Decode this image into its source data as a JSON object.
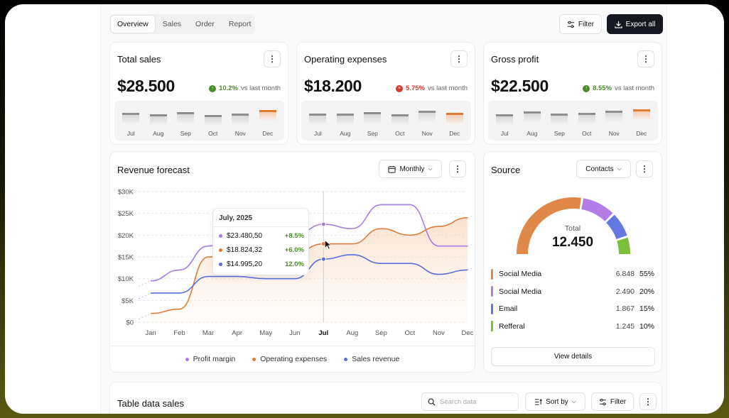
{
  "tabs": [
    "Overview",
    "Sales",
    "Order",
    "Report"
  ],
  "toolbar": {
    "filter_label": "Filter",
    "export_label": "Export all"
  },
  "kpis": [
    {
      "title": "Total sales",
      "value": "$28.500",
      "direction": "up",
      "pct": "10.2%",
      "suffix": "vs last month",
      "color": "#4a8c2a"
    },
    {
      "title": "Operating expenses",
      "value": "$18.200",
      "direction": "down",
      "pct": "5.75%",
      "suffix": "vs last month",
      "color": "#d33a2f"
    },
    {
      "title": "Gross profit",
      "value": "$22.500",
      "direction": "up",
      "pct": "8.55%",
      "suffix": "vs last month",
      "color": "#4a8c2a"
    }
  ],
  "mini_months": [
    "Jul",
    "Aug",
    "Sep",
    "Oct",
    "Nov",
    "Dec"
  ],
  "mini_levels": [
    [
      0.55,
      0.45,
      0.6,
      0.4,
      0.5,
      0.72
    ],
    [
      0.5,
      0.52,
      0.58,
      0.45,
      0.65,
      0.55
    ],
    [
      0.45,
      0.62,
      0.5,
      0.55,
      0.65,
      0.75
    ]
  ],
  "forecast": {
    "title": "Revenue forecast",
    "period_label": "Monthly",
    "tooltip": {
      "title": "July, 2025",
      "rows": [
        {
          "value": "$23.480,50",
          "delta": "+8.5%"
        },
        {
          "value": "$18.824,32",
          "delta": "+6.0%"
        },
        {
          "value": "$14.995,20",
          "delta": "12.0%"
        }
      ]
    },
    "legend": [
      "Profit margin",
      "Operating expenses",
      "Sales revenue"
    ]
  },
  "chart_data": {
    "type": "line",
    "categories": [
      "Jan",
      "Feb",
      "Mar",
      "Apr",
      "May",
      "Jun",
      "Jul",
      "Aug",
      "Sep",
      "Oct",
      "Nov",
      "Dec"
    ],
    "y_ticks": [
      "$0",
      "$5K",
      "$10K",
      "$15K",
      "$20K",
      "$25K",
      "$30K"
    ],
    "ylim": [
      0,
      30000
    ],
    "highlight": "Jul",
    "series": [
      {
        "name": "Profit margin",
        "color": "#a77ee0",
        "values": [
          9500,
          12000,
          17500,
          20000,
          20000,
          20000,
          22500,
          21500,
          27000,
          27000,
          17500,
          17500
        ]
      },
      {
        "name": "Operating expenses",
        "color": "#e07b3a",
        "values": [
          2000,
          3000,
          15000,
          16000,
          16000,
          16000,
          18000,
          18000,
          21500,
          20000,
          22000,
          24000
        ]
      },
      {
        "name": "Sales revenue",
        "color": "#5b6fd9",
        "values": [
          6700,
          6700,
          10500,
          10500,
          10000,
          10000,
          14500,
          15500,
          13500,
          13500,
          11000,
          12000
        ]
      }
    ]
  },
  "source": {
    "title": "Source",
    "dropdown_label": "Contacts",
    "total_label": "Total",
    "total_value": "12.450",
    "items": [
      {
        "name": "Social Media",
        "count": "6.848",
        "pct": "55%",
        "color": "#e0874a",
        "share": 55
      },
      {
        "name": "Social Media",
        "count": "2.490",
        "pct": "20%",
        "color": "#b07ee6",
        "share": 20
      },
      {
        "name": "Email",
        "count": "1.867",
        "pct": "15%",
        "color": "#6478e0",
        "share": 15
      },
      {
        "name": "Refferal",
        "count": "1.245",
        "pct": "10%",
        "color": "#7cbf3a",
        "share": 10
      }
    ],
    "view_details_label": "View details"
  },
  "table": {
    "title": "Table data sales",
    "search_placeholder": "Search data",
    "sort_label": "Sort by",
    "filter_label": "Filter"
  }
}
